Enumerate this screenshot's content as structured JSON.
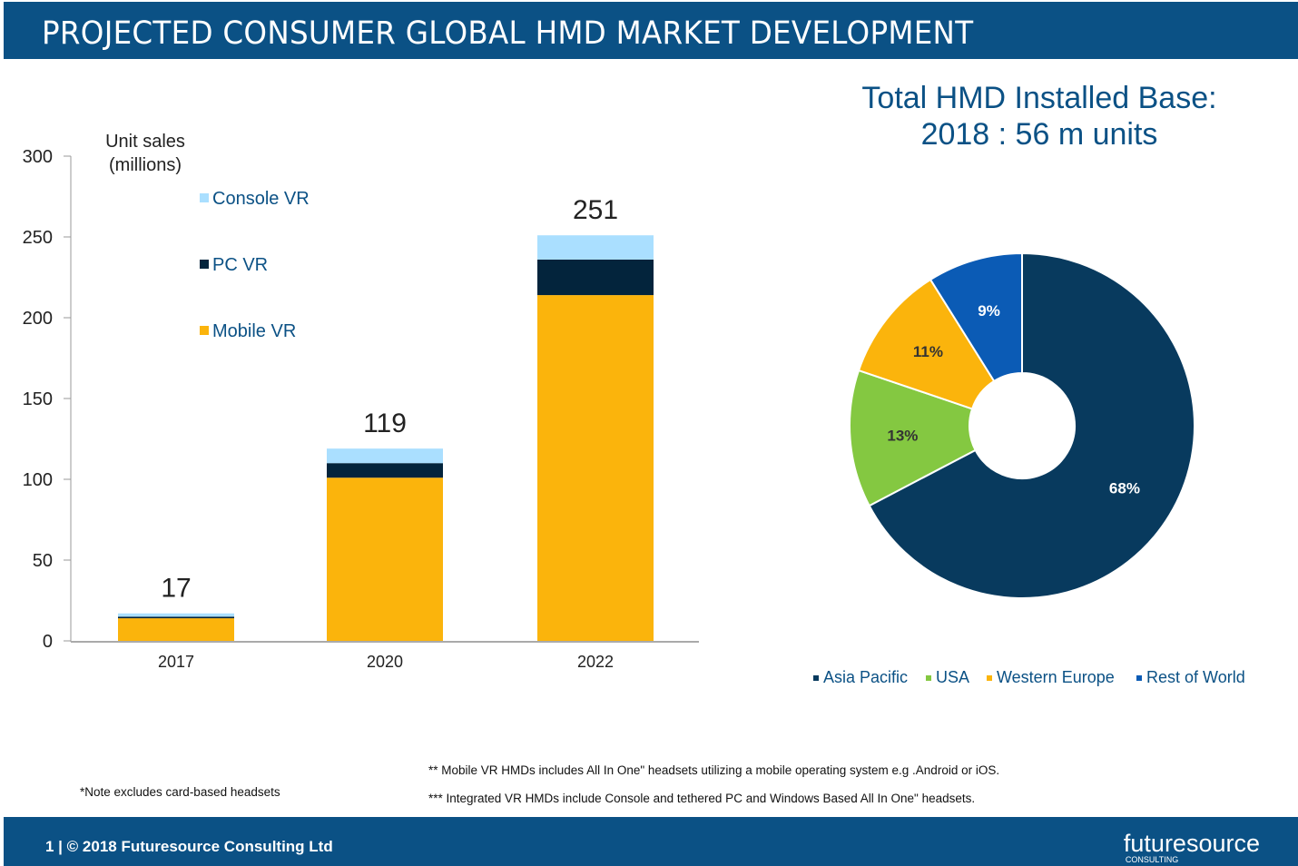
{
  "header": {
    "title": "PROJECTED CONSUMER GLOBAL HMD MARKET DEVELOPMENT"
  },
  "footer": {
    "copyright": "1 | © 2018 Futuresource Consulting Ltd",
    "logo": "futuresource",
    "logo_sub": "CONSULTING"
  },
  "notes": {
    "card": "*Note excludes card-based headsets",
    "mobile": "** Mobile VR HMDs includes All In One\" headsets utilizing a mobile operating system e.g .Android or iOS.",
    "integrated": "*** Integrated VR HMDs include Console and tethered PC and Windows Based All In One\" headsets."
  },
  "chart_data": [
    {
      "type": "bar",
      "stacked": true,
      "ylabel": "Unit sales\n(millions)",
      "ylabel_lines": [
        "Unit sales",
        "(millions)"
      ],
      "ylim": [
        0,
        300
      ],
      "yticks": [
        0,
        50,
        100,
        150,
        200,
        250,
        300
      ],
      "categories": [
        "2017",
        "2020",
        "2022"
      ],
      "totals": [
        "17",
        "119",
        "251"
      ],
      "series": [
        {
          "name": "Mobile VR",
          "color": "#fbb40c",
          "values": [
            14,
            101,
            214
          ]
        },
        {
          "name": "PC VR",
          "color": "#03243c",
          "values": [
            1,
            9,
            22
          ]
        },
        {
          "name": "Console VR",
          "color": "#aadfff",
          "values": [
            2,
            9,
            15
          ]
        }
      ],
      "legend_order": [
        "Console VR",
        "PC VR",
        "Mobile VR"
      ]
    },
    {
      "type": "pie",
      "donut": true,
      "title_lines": [
        "Total HMD Installed Base:",
        "2018 : 56 m units"
      ],
      "slices": [
        {
          "name": "Asia Pacific",
          "value": 68,
          "label": "68%",
          "color": "#083a5e",
          "label_color": "#ffffff"
        },
        {
          "name": "USA",
          "value": 13,
          "label": "13%",
          "color": "#84c841",
          "label_color": "#333333"
        },
        {
          "name": "Western Europe",
          "value": 11,
          "label": "11%",
          "color": "#fbb40c",
          "label_color": "#333333"
        },
        {
          "name": "Rest of World",
          "value": 9,
          "label": "9%",
          "color": "#0b5bb5",
          "label_color": "#ffffff"
        }
      ],
      "legend": "bottom"
    }
  ]
}
